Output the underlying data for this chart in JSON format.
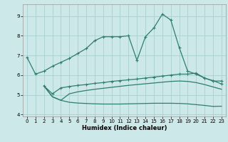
{
  "xlabel": "Humidex (Indice chaleur)",
  "bg_color": "#cce8e8",
  "grid_color": "#aacfcf",
  "line_color": "#2e7d6e",
  "xlim": [
    -0.5,
    23.5
  ],
  "ylim": [
    3.9,
    9.6
  ],
  "yticks": [
    4,
    5,
    6,
    7,
    8,
    9
  ],
  "xticks": [
    0,
    1,
    2,
    3,
    4,
    5,
    6,
    7,
    8,
    9,
    10,
    11,
    12,
    13,
    14,
    15,
    16,
    17,
    18,
    19,
    20,
    21,
    22,
    23
  ],
  "line1_x": [
    0,
    1,
    2,
    3,
    4,
    5,
    6,
    7,
    8,
    9,
    10,
    11,
    12,
    13,
    14,
    15,
    16,
    17,
    18,
    19,
    20,
    21,
    22,
    23
  ],
  "line1_y": [
    6.9,
    6.05,
    6.2,
    6.45,
    6.65,
    6.85,
    7.1,
    7.35,
    7.75,
    7.95,
    7.95,
    7.95,
    8.0,
    6.75,
    7.95,
    8.4,
    9.1,
    8.8,
    7.4,
    6.2,
    6.05,
    5.85,
    5.7,
    5.7
  ],
  "line2_x": [
    2,
    3,
    4,
    5,
    6,
    7,
    8,
    9,
    10,
    11,
    12,
    13,
    14,
    15,
    16,
    17,
    18,
    19,
    20,
    21,
    22,
    23
  ],
  "line2_y": [
    5.45,
    5.05,
    5.35,
    5.42,
    5.48,
    5.52,
    5.58,
    5.62,
    5.68,
    5.72,
    5.76,
    5.8,
    5.85,
    5.9,
    5.95,
    6.0,
    6.05,
    6.05,
    6.1,
    5.85,
    5.72,
    5.55
  ],
  "line3_x": [
    2,
    3,
    4,
    5,
    6,
    7,
    8,
    9,
    10,
    11,
    12,
    13,
    14,
    15,
    16,
    17,
    18,
    19,
    20,
    21,
    22,
    23
  ],
  "line3_y": [
    5.45,
    4.9,
    4.72,
    5.05,
    5.15,
    5.22,
    5.28,
    5.33,
    5.38,
    5.43,
    5.48,
    5.52,
    5.56,
    5.6,
    5.64,
    5.68,
    5.7,
    5.68,
    5.62,
    5.52,
    5.4,
    5.28
  ],
  "line4_x": [
    2,
    3,
    4,
    5,
    6,
    7,
    8,
    9,
    10,
    11,
    12,
    13,
    14,
    15,
    16,
    17,
    18,
    19,
    20,
    21,
    22,
    23
  ],
  "line4_y": [
    5.45,
    4.9,
    4.72,
    4.62,
    4.58,
    4.56,
    4.54,
    4.53,
    4.53,
    4.53,
    4.54,
    4.55,
    4.56,
    4.57,
    4.57,
    4.57,
    4.56,
    4.54,
    4.5,
    4.46,
    4.41,
    4.42
  ]
}
